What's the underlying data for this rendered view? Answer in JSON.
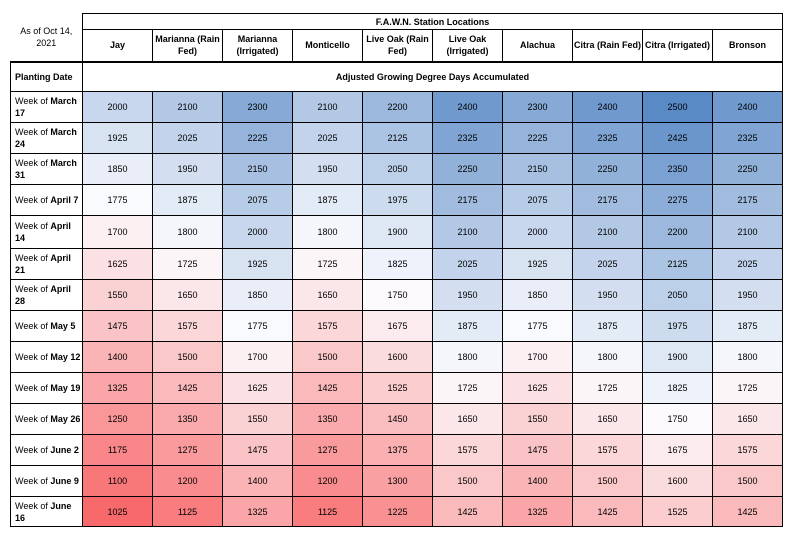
{
  "as_of": "As of Oct 14, 2021",
  "group_header": "F.A.W.N. Station Locations",
  "stations": [
    "Jay",
    "Marianna (Rain Fed)",
    "Marianna (Irrigated)",
    "Monticello",
    "Live Oak (Rain Fed)",
    "Live Oak (Irrigated)",
    "Alachua",
    "Citra (Rain Fed)",
    "Citra (Irrigated)",
    "Bronson"
  ],
  "planting_date_label": "Planting Date",
  "subheader": "Adjusted Growing Degree Days Accumulated",
  "rows": [
    {
      "prefix": "Week of ",
      "date": "March 17",
      "values": [
        2000,
        2100,
        2300,
        2100,
        2200,
        2400,
        2300,
        2400,
        2500,
        2400
      ]
    },
    {
      "prefix": "Week of ",
      "date": "March 24",
      "values": [
        1925,
        2025,
        2225,
        2025,
        2125,
        2325,
        2225,
        2325,
        2425,
        2325
      ]
    },
    {
      "prefix": "Week of ",
      "date": "March 31",
      "values": [
        1850,
        1950,
        2150,
        1950,
        2050,
        2250,
        2150,
        2250,
        2350,
        2250
      ]
    },
    {
      "prefix": "Week of ",
      "date": "April 7",
      "values": [
        1775,
        1875,
        2075,
        1875,
        1975,
        2175,
        2075,
        2175,
        2275,
        2175
      ]
    },
    {
      "prefix": "Week of ",
      "date": "April 14",
      "values": [
        1700,
        1800,
        2000,
        1800,
        1900,
        2100,
        2000,
        2100,
        2200,
        2100
      ]
    },
    {
      "prefix": "Week of ",
      "date": "April 21",
      "values": [
        1625,
        1725,
        1925,
        1725,
        1825,
        2025,
        1925,
        2025,
        2125,
        2025
      ]
    },
    {
      "prefix": "Week of ",
      "date": "April 28",
      "values": [
        1550,
        1650,
        1850,
        1650,
        1750,
        1950,
        1850,
        1950,
        2050,
        1950
      ]
    },
    {
      "prefix": "Week of ",
      "date": "May 5",
      "values": [
        1475,
        1575,
        1775,
        1575,
        1675,
        1875,
        1775,
        1875,
        1975,
        1875
      ]
    },
    {
      "prefix": "Week of ",
      "date": "May 12",
      "values": [
        1400,
        1500,
        1700,
        1500,
        1600,
        1800,
        1700,
        1800,
        1900,
        1800
      ]
    },
    {
      "prefix": "Week of ",
      "date": "May 19",
      "values": [
        1325,
        1425,
        1625,
        1425,
        1525,
        1725,
        1625,
        1725,
        1825,
        1725
      ]
    },
    {
      "prefix": "Week of ",
      "date": "May 26",
      "values": [
        1250,
        1350,
        1550,
        1350,
        1450,
        1650,
        1550,
        1650,
        1750,
        1650
      ]
    },
    {
      "prefix": "Week of ",
      "date": "June 2",
      "values": [
        1175,
        1275,
        1475,
        1275,
        1375,
        1575,
        1475,
        1575,
        1675,
        1575
      ]
    },
    {
      "prefix": "Week of ",
      "date": "June 9",
      "values": [
        1100,
        1200,
        1400,
        1200,
        1300,
        1500,
        1400,
        1500,
        1600,
        1500
      ]
    },
    {
      "prefix": "Week of ",
      "date": "June 16",
      "values": [
        1025,
        1125,
        1325,
        1125,
        1225,
        1425,
        1325,
        1425,
        1525,
        1425
      ]
    }
  ],
  "color_scale": {
    "min": 1025,
    "mid": 1762,
    "max": 2500,
    "low_color": "#f8696b",
    "mid_color": "#fcfcff",
    "high_color": "#5a8ac6"
  }
}
